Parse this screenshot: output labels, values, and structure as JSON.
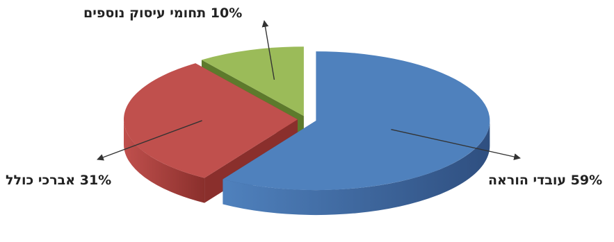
{
  "chart_data": {
    "type": "pie",
    "style": "3d-exploded",
    "title": "",
    "slices": [
      {
        "label": "עובדי הוראה",
        "value": 59,
        "value_text": "59%",
        "color": "#4f81bd",
        "side_color": "#2f4f80"
      },
      {
        "label": "אברכי כולל",
        "value": 31,
        "value_text": "31%",
        "color": "#c0504d",
        "side_color": "#8a2f2c"
      },
      {
        "label": "תחומי עיסוק נוספים",
        "value": 10,
        "value_text": "10%",
        "color": "#9bbb59",
        "side_color": "#5d7a2c"
      }
    ],
    "legend": "none",
    "data_labels": "outside-with-arrows"
  }
}
